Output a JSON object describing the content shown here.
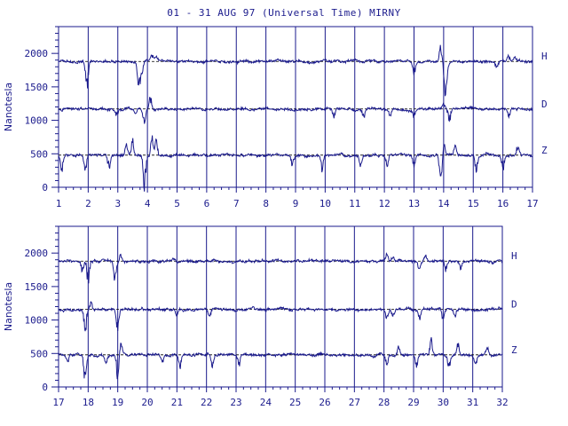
{
  "title": "01 - 31 AUG 97 (Universal Time) MIRNY",
  "colors": {
    "trace": "#1a1a8c",
    "baseline": "#000000",
    "grid": "#1a1a8c",
    "background": "#ffffff"
  },
  "chart_data": [
    {
      "type": "line",
      "panel": "top",
      "ylabel": "Nanotesla",
      "ylim": [
        0,
        2400
      ],
      "y_ticks": [
        0,
        500,
        1000,
        1500,
        2000
      ],
      "xlim": [
        1,
        17
      ],
      "x_ticks": [
        "1",
        "2",
        "3",
        "4",
        "5",
        "6",
        "7",
        "8",
        "9",
        "10",
        "11",
        "12",
        "13",
        "14",
        "15",
        "16",
        "17"
      ],
      "grid": "vertical lines at each day",
      "series": [
        {
          "name": "H",
          "baseline": 1880,
          "events": [
            [
              1.95,
              -420
            ],
            [
              3.7,
              -320
            ],
            [
              3.8,
              -250
            ],
            [
              4.15,
              80
            ],
            [
              4.3,
              50
            ],
            [
              13.0,
              -150
            ],
            [
              13.9,
              200
            ],
            [
              14.05,
              -300
            ],
            [
              14.1,
              -200
            ],
            [
              15.8,
              -100
            ],
            [
              16.2,
              60
            ],
            [
              16.4,
              50
            ]
          ]
        },
        {
          "name": "D",
          "baseline": 1170,
          "events": [
            [
              1.1,
              -60
            ],
            [
              2.95,
              -100
            ],
            [
              3.6,
              -80
            ],
            [
              3.9,
              -150
            ],
            [
              4.1,
              160
            ],
            [
              10.3,
              -120
            ],
            [
              11.3,
              -110
            ],
            [
              12.2,
              -100
            ],
            [
              13.0,
              -90
            ],
            [
              14.0,
              60
            ],
            [
              14.2,
              -180
            ],
            [
              16.2,
              -100
            ]
          ]
        },
        {
          "name": "Z",
          "baseline": 480,
          "events": [
            [
              1.1,
              -200
            ],
            [
              1.9,
              -230
            ],
            [
              2.7,
              -170
            ],
            [
              3.3,
              150
            ],
            [
              3.5,
              220
            ],
            [
              3.9,
              -380
            ],
            [
              4.15,
              230
            ],
            [
              4.3,
              200
            ],
            [
              8.9,
              -120
            ],
            [
              9.9,
              -200
            ],
            [
              11.2,
              -150
            ],
            [
              12.1,
              -120
            ],
            [
              13.0,
              -150
            ],
            [
              13.9,
              -400
            ],
            [
              14.0,
              150
            ],
            [
              14.4,
              150
            ],
            [
              15.1,
              -200
            ],
            [
              16.0,
              -180
            ],
            [
              16.5,
              130
            ]
          ]
        }
      ]
    },
    {
      "type": "line",
      "panel": "bottom",
      "ylabel": "Nanotesla",
      "ylim": [
        0,
        2400
      ],
      "y_ticks": [
        0,
        500,
        1000,
        1500,
        2000
      ],
      "xlim": [
        17,
        32
      ],
      "x_ticks": [
        "17",
        "18",
        "19",
        "20",
        "21",
        "22",
        "23",
        "24",
        "25",
        "26",
        "27",
        "28",
        "29",
        "30",
        "31",
        "32"
      ],
      "grid": "vertical lines at each day",
      "series": [
        {
          "name": "H",
          "baseline": 1880,
          "events": [
            [
              17.8,
              -150
            ],
            [
              18.0,
              -280
            ],
            [
              18.9,
              -240
            ],
            [
              19.1,
              80
            ],
            [
              20.9,
              50
            ],
            [
              28.1,
              100
            ],
            [
              28.3,
              80
            ],
            [
              29.2,
              -120
            ],
            [
              29.4,
              80
            ],
            [
              30.1,
              -120
            ],
            [
              30.6,
              -100
            ]
          ]
        },
        {
          "name": "D",
          "baseline": 1160,
          "events": [
            [
              17.9,
              -300
            ],
            [
              18.1,
              100
            ],
            [
              19.0,
              -250
            ],
            [
              21.0,
              -90
            ],
            [
              22.1,
              -100
            ],
            [
              28.1,
              -140
            ],
            [
              28.3,
              -120
            ],
            [
              29.2,
              -120
            ],
            [
              30.0,
              -130
            ],
            [
              30.4,
              -100
            ]
          ]
        },
        {
          "name": "Z",
          "baseline": 480,
          "events": [
            [
              17.3,
              -100
            ],
            [
              17.9,
              -380
            ],
            [
              18.6,
              -120
            ],
            [
              19.0,
              -300
            ],
            [
              19.1,
              150
            ],
            [
              20.5,
              -120
            ],
            [
              21.1,
              -170
            ],
            [
              22.2,
              -150
            ],
            [
              23.1,
              -120
            ],
            [
              28.1,
              -130
            ],
            [
              28.5,
              150
            ],
            [
              29.1,
              -150
            ],
            [
              29.6,
              200
            ],
            [
              30.2,
              -160
            ],
            [
              30.5,
              150
            ],
            [
              31.1,
              -130
            ],
            [
              31.5,
              100
            ]
          ]
        }
      ]
    }
  ]
}
